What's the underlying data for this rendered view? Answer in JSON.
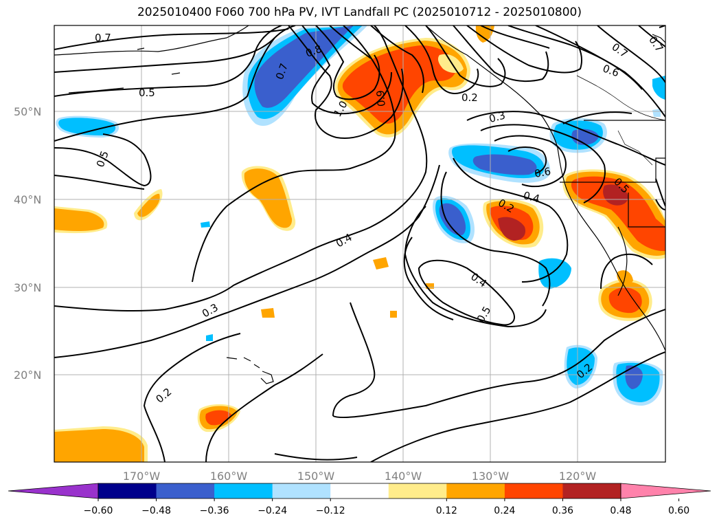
{
  "title": "2025010400 F060 700 hPa PV, IVT Landfall PC (2025010712 - 2025010800)",
  "lat_labels": [
    "50°N",
    "40°N",
    "30°N",
    "20°N"
  ],
  "lon_labels": [
    "170°W",
    "160°W",
    "150°W",
    "140°W",
    "130°W",
    "120°W"
  ],
  "contour_labels": [
    {
      "text": "0.7"
    },
    {
      "text": "0.5"
    },
    {
      "text": "0.5"
    },
    {
      "text": "0.7"
    },
    {
      "text": "0.8"
    },
    {
      "text": "1.0"
    },
    {
      "text": "0.9"
    },
    {
      "text": "0.2"
    },
    {
      "text": "0.3"
    },
    {
      "text": "0.7"
    },
    {
      "text": "0.6"
    },
    {
      "text": "0.7"
    },
    {
      "text": "0.6"
    },
    {
      "text": "0.4"
    },
    {
      "text": "0.2"
    },
    {
      "text": "0.5"
    },
    {
      "text": "0.4"
    },
    {
      "text": "0.4"
    },
    {
      "text": "0.5"
    },
    {
      "text": "0.3"
    },
    {
      "text": "0.2"
    },
    {
      "text": "0.2"
    }
  ],
  "colorbar": {
    "ticks": [
      "−0.60",
      "−0.48",
      "−0.36",
      "−0.24",
      "−0.12",
      "0.12",
      "0.24",
      "0.36",
      "0.48",
      "0.60"
    ],
    "colors": [
      "#9932CC",
      "#00008B",
      "#3A5FCD",
      "#00BFFF",
      "#B0E2FF",
      "#FFFFFF",
      "#FFEC8B",
      "#FFA500",
      "#FF4500",
      "#B22222",
      "#FF82AB"
    ]
  }
}
